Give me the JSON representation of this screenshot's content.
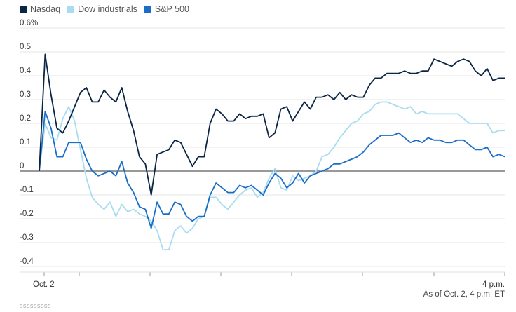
{
  "colors": {
    "nasdaq": "#0b2545",
    "dow": "#a8dcf0",
    "sp500": "#1a6ec8",
    "grid": "#e6e6e6",
    "zero": "#333333"
  },
  "legend": [
    {
      "label": "Nasdaq",
      "color": "#0b2545"
    },
    {
      "label": "Dow industrials",
      "color": "#a8dcf0"
    },
    {
      "label": "S&P 500",
      "color": "#1a6ec8"
    }
  ],
  "footer": {
    "note": "As of Oct. 2, 4 p.m. ET",
    "credit": "sssssssss"
  },
  "chart_data": {
    "type": "line",
    "title": "",
    "xlabel": "",
    "ylabel": "",
    "ylim": [
      -0.4,
      0.6
    ],
    "yticks": [
      {
        "value": 0.6,
        "label": "0.6%"
      },
      {
        "value": 0.5,
        "label": "0.5"
      },
      {
        "value": 0.4,
        "label": "0.4"
      },
      {
        "value": 0.3,
        "label": "0.3"
      },
      {
        "value": 0.2,
        "label": "0.2"
      },
      {
        "value": 0.1,
        "label": "0.1"
      },
      {
        "value": 0,
        "label": "0"
      },
      {
        "value": -0.1,
        "label": "-0.1"
      },
      {
        "value": -0.2,
        "label": "-0.2"
      },
      {
        "value": -0.3,
        "label": "-0.3"
      },
      {
        "value": -0.4,
        "label": "-0.4"
      }
    ],
    "x_start_label": "Oct. 2",
    "x_end_label": "4 p.m.",
    "grid": true,
    "legend_position": "top-left",
    "series": [
      {
        "name": "Nasdaq",
        "color": "#0b2545",
        "values": [
          0,
          0.49,
          0.32,
          0.18,
          0.16,
          0.21,
          0.27,
          0.33,
          0.35,
          0.29,
          0.29,
          0.34,
          0.31,
          0.29,
          0.35,
          0.25,
          0.17,
          0.06,
          0.03,
          -0.1,
          0.07,
          0.08,
          0.09,
          0.13,
          0.12,
          0.07,
          0.02,
          0.06,
          0.06,
          0.2,
          0.26,
          0.24,
          0.21,
          0.21,
          0.24,
          0.22,
          0.23,
          0.23,
          0.24,
          0.14,
          0.16,
          0.26,
          0.27,
          0.21,
          0.25,
          0.29,
          0.26,
          0.31,
          0.31,
          0.32,
          0.3,
          0.33,
          0.3,
          0.32,
          0.31,
          0.31,
          0.36,
          0.39,
          0.39,
          0.41,
          0.41,
          0.41,
          0.42,
          0.41,
          0.41,
          0.42,
          0.42,
          0.47,
          0.46,
          0.45,
          0.44,
          0.46,
          0.47,
          0.46,
          0.42,
          0.4,
          0.43,
          0.38,
          0.39,
          0.39
        ]
      },
      {
        "name": "Dow industrials",
        "color": "#a8dcf0",
        "values": [
          0,
          0.2,
          0.14,
          0.13,
          0.22,
          0.27,
          0.21,
          0.09,
          -0.03,
          -0.11,
          -0.14,
          -0.16,
          -0.13,
          -0.19,
          -0.14,
          -0.17,
          -0.16,
          -0.18,
          -0.19,
          -0.21,
          -0.25,
          -0.33,
          -0.33,
          -0.25,
          -0.23,
          -0.26,
          -0.24,
          -0.2,
          -0.19,
          -0.11,
          -0.11,
          -0.14,
          -0.16,
          -0.13,
          -0.1,
          -0.08,
          -0.07,
          -0.11,
          -0.09,
          -0.03,
          0.01,
          -0.07,
          -0.08,
          -0.02,
          -0.04,
          -0.03,
          -0.02,
          0,
          0.06,
          0.07,
          0.1,
          0.14,
          0.17,
          0.2,
          0.21,
          0.24,
          0.25,
          0.28,
          0.29,
          0.29,
          0.28,
          0.27,
          0.26,
          0.27,
          0.24,
          0.25,
          0.24,
          0.24,
          0.24,
          0.24,
          0.24,
          0.24,
          0.22,
          0.2,
          0.2,
          0.2,
          0.2,
          0.16,
          0.17,
          0.17
        ]
      },
      {
        "name": "S&P 500",
        "color": "#1a6ec8",
        "values": [
          0,
          0.25,
          0.18,
          0.06,
          0.06,
          0.12,
          0.12,
          0.12,
          0.05,
          0,
          -0.02,
          -0.01,
          0,
          -0.02,
          0.04,
          -0.05,
          -0.09,
          -0.15,
          -0.16,
          -0.24,
          -0.13,
          -0.18,
          -0.18,
          -0.13,
          -0.14,
          -0.19,
          -0.21,
          -0.19,
          -0.19,
          -0.1,
          -0.05,
          -0.07,
          -0.09,
          -0.09,
          -0.06,
          -0.07,
          -0.06,
          -0.08,
          -0.1,
          -0.05,
          -0.01,
          -0.03,
          -0.07,
          -0.05,
          -0.01,
          -0.05,
          -0.02,
          -0.01,
          0,
          0.01,
          0.03,
          0.03,
          0.04,
          0.05,
          0.06,
          0.08,
          0.11,
          0.13,
          0.15,
          0.15,
          0.15,
          0.16,
          0.14,
          0.12,
          0.13,
          0.12,
          0.14,
          0.13,
          0.13,
          0.12,
          0.12,
          0.13,
          0.13,
          0.11,
          0.09,
          0.09,
          0.1,
          0.06,
          0.07,
          0.06
        ]
      }
    ]
  }
}
